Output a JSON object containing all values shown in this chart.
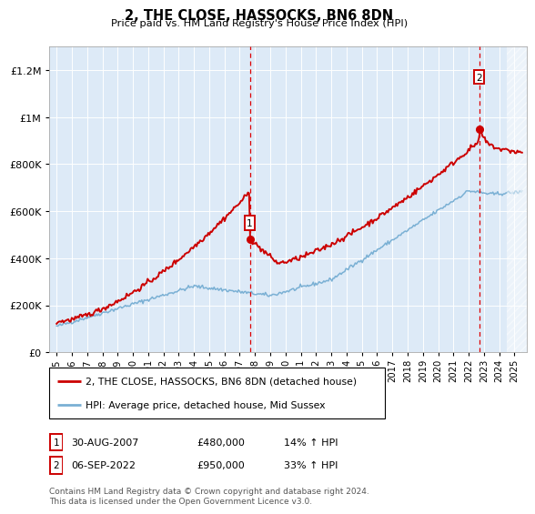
{
  "title": "2, THE CLOSE, HASSOCKS, BN6 8DN",
  "subtitle": "Price paid vs. HM Land Registry's House Price Index (HPI)",
  "bg_color": "#ddeaf7",
  "red_line_color": "#cc0000",
  "blue_line_color": "#7ab0d4",
  "annotation1": {
    "x_year": 2007.66,
    "y_val": 480000,
    "label": "1",
    "date": "30-AUG-2007",
    "price": "£480,000",
    "hpi": "14% ↑ HPI"
  },
  "annotation2": {
    "x_year": 2022.68,
    "y_val": 950000,
    "label": "2",
    "date": "06-SEP-2022",
    "price": "£950,000",
    "hpi": "33% ↑ HPI"
  },
  "legend_red_label": "2, THE CLOSE, HASSOCKS, BN6 8DN (detached house)",
  "legend_blue_label": "HPI: Average price, detached house, Mid Sussex",
  "footnote": "Contains HM Land Registry data © Crown copyright and database right 2024.\nThis data is licensed under the Open Government Licence v3.0.",
  "ylim": [
    0,
    1300000
  ],
  "xlim_start": 1994.5,
  "xlim_end": 2025.8,
  "yticks": [
    0,
    200000,
    400000,
    600000,
    800000,
    1000000,
    1200000
  ],
  "hatch_start": 2024.5,
  "noise_seed": 42
}
